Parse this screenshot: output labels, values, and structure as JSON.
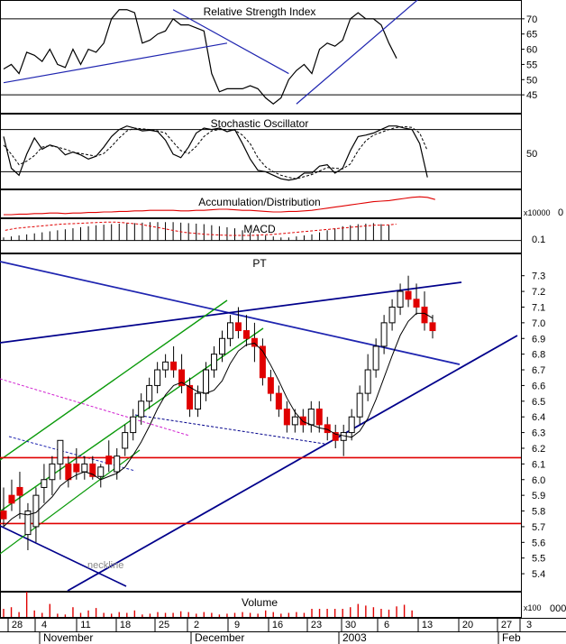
{
  "chart_data": {
    "type": "candlestick",
    "panels": {
      "rsi": {
        "title": "Relative Strength Index",
        "ticks": [
          70,
          65,
          60,
          55,
          50,
          45
        ],
        "ylim": [
          40,
          75
        ],
        "hlines": [
          70,
          45
        ],
        "values": [
          53.5,
          55,
          52,
          59,
          58,
          56,
          60,
          55,
          54,
          60,
          55,
          60,
          59,
          62,
          70,
          73,
          73,
          72,
          62,
          63,
          65,
          66,
          70,
          68,
          68,
          67,
          66,
          52,
          46,
          47,
          47,
          47,
          48,
          47,
          44,
          42,
          44,
          50,
          53,
          55,
          52,
          60,
          62,
          61,
          63,
          70,
          72,
          70,
          70,
          68,
          62,
          57
        ],
        "trendlines": [
          {
            "from": [
              0,
              49
            ],
            "to": [
              29,
              62
            ]
          },
          {
            "from": [
              22,
              73
            ],
            "to": [
              37,
              52
            ]
          },
          {
            "from": [
              38,
              42
            ],
            "to": [
              55,
              79
            ]
          }
        ]
      },
      "stochastic": {
        "title": "Stochastic Oscillator",
        "ticks": [
          50
        ],
        "ylim": [
          0,
          100
        ],
        "hlines": [
          80,
          20
        ],
        "k": [
          70,
          25,
          15,
          45,
          68,
          52,
          58,
          55,
          44,
          48,
          44,
          38,
          42,
          55,
          70,
          80,
          85,
          82,
          78,
          79,
          77,
          65,
          45,
          40,
          55,
          75,
          82,
          80,
          82,
          77,
          80,
          60,
          38,
          22,
          20,
          15,
          10,
          8,
          10,
          18,
          18,
          28,
          30,
          18,
          25,
          50,
          70,
          72,
          75,
          80,
          85,
          85,
          82,
          80,
          60,
          12
        ],
        "d": [
          58,
          45,
          30,
          35,
          43,
          55,
          57,
          55,
          52,
          48,
          46,
          44,
          42,
          46,
          56,
          68,
          78,
          82,
          81,
          80,
          78,
          75,
          62,
          50,
          46,
          56,
          70,
          78,
          80,
          80,
          79,
          72,
          60,
          40,
          27,
          20,
          15,
          12,
          10,
          13,
          16,
          21,
          26,
          25,
          24,
          31,
          50,
          64,
          72,
          76,
          80,
          83,
          84,
          83,
          75,
          50
        ]
      },
      "accumulation": {
        "title": "Accumulation/Distribution",
        "unit": "x10000",
        "tick": "0",
        "values": [
          -20,
          -20,
          -19,
          -19,
          -18,
          -18,
          -17,
          -17,
          -18,
          -17,
          -17,
          -16,
          -16,
          -15,
          -15,
          -14,
          -14,
          -13,
          -13,
          -12,
          -12,
          -12,
          -12,
          -13,
          -13,
          -12,
          -12,
          -11,
          -10,
          -10,
          -11,
          -12,
          -12,
          -13,
          -14,
          -15,
          -15,
          -14,
          -14,
          -13,
          -12,
          -10,
          -8,
          -6,
          -4,
          -2,
          0,
          2,
          4,
          5,
          6,
          8,
          10,
          12,
          13,
          12,
          8
        ]
      },
      "macd": {
        "title": "MACD",
        "tick": "0.1",
        "ylim": [
          -0.1,
          0.2
        ],
        "histogram": [
          0.03,
          0.04,
          0.05,
          0.06,
          0.07,
          0.08,
          0.09,
          0.1,
          0.11,
          0.12,
          0.13,
          0.14,
          0.15,
          0.155,
          0.16,
          0.165,
          0.17,
          0.17,
          0.175,
          0.18,
          0.18,
          0.18,
          0.18,
          0.175,
          0.17,
          0.165,
          0.16,
          0.15,
          0.14,
          0.13,
          0.12,
          0.1,
          0.08,
          0.06,
          0.05,
          0.04,
          0.03,
          0.03,
          0.04,
          0.05,
          0.06,
          0.08,
          0.1,
          0.12,
          0.14,
          0.15,
          0.16,
          0.165,
          0.17,
          0.16,
          0.15
        ],
        "signal": [
          0.1,
          0.12,
          0.13,
          0.14,
          0.15,
          0.16,
          0.165,
          0.17,
          0.175,
          0.18,
          0.18,
          0.17,
          0.16,
          0.14,
          0.12,
          0.1,
          0.08,
          0.07,
          0.06,
          0.055,
          0.05,
          0.05,
          0.05,
          0.055,
          0.06,
          0.07,
          0.08,
          0.09,
          0.1,
          0.11,
          0.12,
          0.13,
          0.14,
          0.15,
          0.15,
          0.16
        ]
      },
      "price": {
        "title": "PT",
        "ticks": [
          7.3,
          7.2,
          7.1,
          7.0,
          6.9,
          6.8,
          6.7,
          6.6,
          6.5,
          6.4,
          6.3,
          6.2,
          6.1,
          6.0,
          5.9,
          5.8,
          5.7,
          5.6,
          5.5,
          5.4
        ],
        "ylim": [
          5.32,
          7.35
        ],
        "candles": [
          {
            "o": 5.8,
            "h": 5.95,
            "l": 5.7,
            "c": 5.75
          },
          {
            "o": 5.9,
            "h": 6.0,
            "l": 5.8,
            "c": 5.85
          },
          {
            "o": 5.95,
            "h": 6.05,
            "l": 5.75,
            "c": 5.9
          },
          {
            "o": 5.65,
            "h": 5.85,
            "l": 5.55,
            "c": 5.8
          },
          {
            "o": 5.7,
            "h": 5.95,
            "l": 5.6,
            "c": 5.9
          },
          {
            "o": 5.95,
            "h": 6.1,
            "l": 5.85,
            "c": 6.0
          },
          {
            "o": 6.0,
            "h": 6.15,
            "l": 5.9,
            "c": 6.1
          },
          {
            "o": 6.1,
            "h": 6.25,
            "l": 6.0,
            "c": 6.25
          },
          {
            "o": 6.1,
            "h": 6.15,
            "l": 5.95,
            "c": 6.0
          },
          {
            "o": 6.1,
            "h": 6.2,
            "l": 6.0,
            "c": 6.05
          },
          {
            "o": 6.05,
            "h": 6.15,
            "l": 6.0,
            "c": 6.1
          },
          {
            "o": 6.1,
            "h": 6.15,
            "l": 6.0,
            "c": 6.02
          },
          {
            "o": 6.02,
            "h": 6.1,
            "l": 5.95,
            "c": 6.08
          },
          {
            "o": 6.15,
            "h": 6.25,
            "l": 6.05,
            "c": 6.1
          },
          {
            "o": 6.05,
            "h": 6.2,
            "l": 6.0,
            "c": 6.15
          },
          {
            "o": 6.2,
            "h": 6.35,
            "l": 6.15,
            "c": 6.3
          },
          {
            "o": 6.3,
            "h": 6.45,
            "l": 6.25,
            "c": 6.4
          },
          {
            "o": 6.4,
            "h": 6.55,
            "l": 6.35,
            "c": 6.5
          },
          {
            "o": 6.5,
            "h": 6.65,
            "l": 6.45,
            "c": 6.6
          },
          {
            "o": 6.6,
            "h": 6.75,
            "l": 6.55,
            "c": 6.7
          },
          {
            "o": 6.7,
            "h": 6.8,
            "l": 6.65,
            "c": 6.75
          },
          {
            "o": 6.75,
            "h": 6.85,
            "l": 6.65,
            "c": 6.7
          },
          {
            "o": 6.7,
            "h": 6.8,
            "l": 6.55,
            "c": 6.6
          },
          {
            "o": 6.6,
            "h": 6.65,
            "l": 6.4,
            "c": 6.45
          },
          {
            "o": 6.45,
            "h": 6.6,
            "l": 6.4,
            "c": 6.55
          },
          {
            "o": 6.55,
            "h": 6.75,
            "l": 6.5,
            "c": 6.7
          },
          {
            "o": 6.7,
            "h": 6.85,
            "l": 6.65,
            "c": 6.8
          },
          {
            "o": 6.8,
            "h": 6.95,
            "l": 6.75,
            "c": 6.9
          },
          {
            "o": 6.9,
            "h": 7.05,
            "l": 6.85,
            "c": 7.0
          },
          {
            "o": 7.0,
            "h": 7.1,
            "l": 6.9,
            "c": 6.95
          },
          {
            "o": 6.95,
            "h": 7.05,
            "l": 6.85,
            "c": 6.9
          },
          {
            "o": 6.9,
            "h": 7.0,
            "l": 6.75,
            "c": 6.85
          },
          {
            "o": 6.85,
            "h": 6.9,
            "l": 6.6,
            "c": 6.65
          },
          {
            "o": 6.65,
            "h": 6.7,
            "l": 6.5,
            "c": 6.55
          },
          {
            "o": 6.55,
            "h": 6.6,
            "l": 6.4,
            "c": 6.45
          },
          {
            "o": 6.45,
            "h": 6.5,
            "l": 6.3,
            "c": 6.35
          },
          {
            "o": 6.35,
            "h": 6.45,
            "l": 6.3,
            "c": 6.4
          },
          {
            "o": 6.4,
            "h": 6.45,
            "l": 6.3,
            "c": 6.35
          },
          {
            "o": 6.35,
            "h": 6.5,
            "l": 6.3,
            "c": 6.45
          },
          {
            "o": 6.45,
            "h": 6.5,
            "l": 6.3,
            "c": 6.35
          },
          {
            "o": 6.35,
            "h": 6.4,
            "l": 6.25,
            "c": 6.3
          },
          {
            "o": 6.3,
            "h": 6.35,
            "l": 6.2,
            "c": 6.25
          },
          {
            "o": 6.25,
            "h": 6.35,
            "l": 6.15,
            "c": 6.3
          },
          {
            "o": 6.3,
            "h": 6.45,
            "l": 6.25,
            "c": 6.4
          },
          {
            "o": 6.4,
            "h": 6.6,
            "l": 6.35,
            "c": 6.55
          },
          {
            "o": 6.55,
            "h": 6.8,
            "l": 6.5,
            "c": 6.7
          },
          {
            "o": 6.7,
            "h": 6.9,
            "l": 6.65,
            "c": 6.85
          },
          {
            "o": 6.85,
            "h": 7.05,
            "l": 6.8,
            "c": 7.0
          },
          {
            "o": 7.0,
            "h": 7.15,
            "l": 6.95,
            "c": 7.1
          },
          {
            "o": 7.1,
            "h": 7.25,
            "l": 7.05,
            "c": 7.2
          },
          {
            "o": 7.2,
            "h": 7.3,
            "l": 7.1,
            "c": 7.15
          },
          {
            "o": 7.15,
            "h": 7.25,
            "l": 7.05,
            "c": 7.1
          },
          {
            "o": 7.1,
            "h": 7.2,
            "l": 6.95,
            "c": 7.0
          },
          {
            "o": 7.0,
            "h": 7.05,
            "l": 6.9,
            "c": 6.95
          }
        ],
        "hlines": [
          6.14,
          5.72
        ],
        "annotation": "neckline"
      },
      "volume": {
        "title": "Volume",
        "unit": "x100",
        "values": [
          1,
          1.2,
          0.6,
          3.1,
          0.8,
          0.5,
          1.6,
          0.4,
          0.3,
          1.2,
          0.5,
          0.8,
          1.1,
          0.5,
          0.4,
          0.6,
          0.5,
          0.8,
          0.3,
          0.4,
          0.6,
          0.5,
          0.5,
          0.7,
          0.6,
          0.4,
          0.6,
          0.5,
          0.3,
          0.4,
          0.5,
          0.6,
          0.5,
          0.4,
          0.8,
          0.6,
          0.4,
          0.5,
          0.6,
          0.5,
          1,
          1,
          1,
          1,
          1,
          1.2,
          1.6,
          1.4,
          1.2,
          1,
          0.9,
          1.3,
          1.5,
          0.8
        ]
      }
    },
    "x_axis": {
      "day_labels": [
        "28",
        "4",
        "11",
        "18",
        "25",
        "2",
        "9",
        "16",
        "23",
        "30",
        "6",
        "13",
        "20",
        "27",
        "3"
      ],
      "month_labels": [
        "November",
        "December",
        "2003",
        "Feb"
      ]
    },
    "colors": {
      "up": "#1a8a1a",
      "down": "#e00000",
      "blue": "#1f25b0",
      "navy": "#00008b",
      "green": "#0a9a0a",
      "red": "#e00000",
      "magenta": "#d020d0"
    }
  }
}
